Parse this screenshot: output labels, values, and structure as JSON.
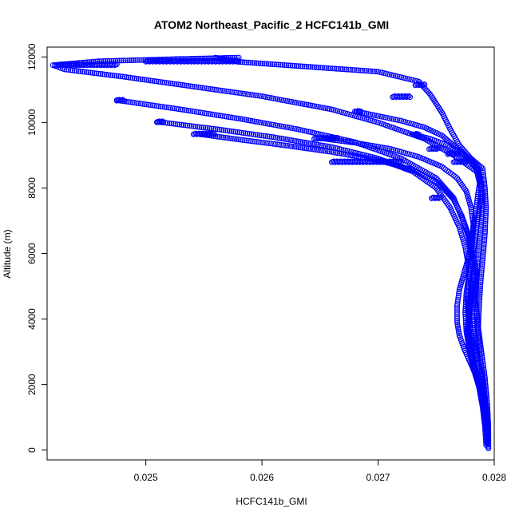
{
  "chart_data": {
    "type": "scatter",
    "title": "ATOM2 Northeast_Pacific_2 HCFC141b_GMI",
    "xlabel": "HCFC141b_GMI",
    "ylabel": "Altitude (m)",
    "xlim": [
      0.02415,
      0.028
    ],
    "ylim": [
      -300,
      12300
    ],
    "xticks": [
      0.025,
      0.026,
      0.027,
      0.028
    ],
    "xtick_labels": [
      "0.025",
      "0.026",
      "0.027",
      "0.028"
    ],
    "yticks": [
      0,
      2000,
      4000,
      6000,
      8000,
      10000,
      12000
    ],
    "ytick_labels": [
      "0",
      "2000",
      "4000",
      "6000",
      "8000",
      "10000",
      "12000"
    ],
    "grid": false,
    "legend": "none",
    "marker": "open-circle",
    "series": [
      {
        "color": "#0000ff",
        "segments": [
          [
            [
              0.02795,
              50
            ],
            [
              0.02794,
              600
            ],
            [
              0.02793,
              1200
            ],
            [
              0.02791,
              2000
            ],
            [
              0.02788,
              2800
            ],
            [
              0.02786,
              3600
            ],
            [
              0.02787,
              4400
            ],
            [
              0.02788,
              5000
            ],
            [
              0.0279,
              5800
            ],
            [
              0.02792,
              6600
            ],
            [
              0.02793,
              7400
            ],
            [
              0.02792,
              8000
            ],
            [
              0.0279,
              8600
            ],
            [
              0.0278,
              8900
            ],
            [
              0.0277,
              9300
            ],
            [
              0.02762,
              9800
            ],
            [
              0.02755,
              10300
            ],
            [
              0.02745,
              10850
            ],
            [
              0.02735,
              11250
            ],
            [
              0.027,
              11550
            ],
            [
              0.0264,
              11700
            ],
            [
              0.0258,
              11850
            ],
            [
              0.0256,
              11980
            ]
          ],
          [
            [
              0.0258,
              11980
            ],
            [
              0.0252,
              11930
            ],
            [
              0.0246,
              11870
            ],
            [
              0.0242,
              11750
            ],
            [
              0.0243,
              11620
            ],
            [
              0.0248,
              11400
            ],
            [
              0.0254,
              11100
            ],
            [
              0.026,
              10800
            ],
            [
              0.0266,
              10400
            ],
            [
              0.027,
              10000
            ],
            [
              0.0274,
              9500
            ],
            [
              0.02765,
              9000
            ],
            [
              0.02785,
              8500
            ],
            [
              0.0279,
              7800
            ],
            [
              0.02789,
              7000
            ],
            [
              0.02787,
              6200
            ],
            [
              0.02785,
              5400
            ],
            [
              0.02784,
              4600
            ],
            [
              0.02786,
              3800
            ],
            [
              0.02789,
              3000
            ],
            [
              0.02792,
              2200
            ],
            [
              0.02794,
              1400
            ],
            [
              0.02795,
              700
            ],
            [
              0.02795,
              100
            ]
          ],
          [
            [
              0.02475,
              10680
            ],
            [
              0.0253,
              10400
            ],
            [
              0.0258,
              10120
            ],
            [
              0.0263,
              9800
            ],
            [
              0.0268,
              9400
            ],
            [
              0.0272,
              8900
            ],
            [
              0.0275,
              8300
            ],
            [
              0.02765,
              7700
            ],
            [
              0.02772,
              7100
            ],
            [
              0.02778,
              6500
            ],
            [
              0.02782,
              5900
            ],
            [
              0.02785,
              5300
            ],
            [
              0.02783,
              4700
            ],
            [
              0.02781,
              4100
            ],
            [
              0.02782,
              3500
            ],
            [
              0.02785,
              2900
            ],
            [
              0.02789,
              2300
            ],
            [
              0.02792,
              1600
            ],
            [
              0.02794,
              900
            ],
            [
              0.02795,
              300
            ]
          ],
          [
            [
              0.0251,
              10020
            ],
            [
              0.0256,
              9800
            ],
            [
              0.0261,
              9550
            ],
            [
              0.0266,
              9250
            ],
            [
              0.027,
              8900
            ],
            [
              0.0273,
              8500
            ],
            [
              0.0275,
              8000
            ],
            [
              0.02762,
              7400
            ],
            [
              0.0277,
              6800
            ],
            [
              0.02775,
              6200
            ],
            [
              0.02778,
              5600
            ],
            [
              0.0278,
              5000
            ],
            [
              0.02779,
              4400
            ],
            [
              0.02778,
              3800
            ],
            [
              0.02779,
              3200
            ],
            [
              0.02783,
              2600
            ],
            [
              0.02788,
              2000
            ],
            [
              0.02791,
              1400
            ],
            [
              0.02793,
              800
            ],
            [
              0.02794,
              200
            ]
          ],
          [
            [
              0.02545,
              9650
            ],
            [
              0.0258,
              9480
            ],
            [
              0.0262,
              9300
            ],
            [
              0.0266,
              9100
            ],
            [
              0.027,
              8850
            ],
            [
              0.0273,
              8550
            ],
            [
              0.02752,
              8150
            ],
            [
              0.02765,
              7650
            ],
            [
              0.02772,
              7150
            ],
            [
              0.02777,
              6650
            ],
            [
              0.0278,
              6100
            ],
            [
              0.02782,
              5500
            ],
            [
              0.02781,
              4900
            ],
            [
              0.02779,
              4300
            ],
            [
              0.02777,
              3700
            ],
            [
              0.02778,
              3100
            ],
            [
              0.02782,
              2500
            ],
            [
              0.02787,
              1900
            ],
            [
              0.0279,
              1300
            ],
            [
              0.02792,
              700
            ],
            [
              0.02793,
              150
            ]
          ],
          [
            [
              0.0268,
              10340
            ],
            [
              0.027,
              10200
            ],
            [
              0.0272,
              10050
            ],
            [
              0.0274,
              9850
            ],
            [
              0.02755,
              9600
            ],
            [
              0.02765,
              9300
            ],
            [
              0.02775,
              9000
            ],
            [
              0.02785,
              8700
            ],
            [
              0.02788,
              8300
            ],
            [
              0.02786,
              7800
            ],
            [
              0.02784,
              7300
            ],
            [
              0.02782,
              6800
            ],
            [
              0.02781,
              6300
            ],
            [
              0.0278,
              5800
            ],
            [
              0.02778,
              5300
            ],
            [
              0.02776,
              4800
            ],
            [
              0.02775,
              4200
            ],
            [
              0.02776,
              3600
            ],
            [
              0.02779,
              3000
            ],
            [
              0.02784,
              2400
            ],
            [
              0.02788,
              1800
            ],
            [
              0.02791,
              1200
            ],
            [
              0.02793,
              600
            ]
          ],
          [
            [
              0.0273,
              9640
            ],
            [
              0.02745,
              9500
            ],
            [
              0.0276,
              9300
            ],
            [
              0.02772,
              9050
            ],
            [
              0.0278,
              8800
            ],
            [
              0.02786,
              8500
            ],
            [
              0.02789,
              8100
            ],
            [
              0.02788,
              7600
            ],
            [
              0.02786,
              7100
            ],
            [
              0.02784,
              6600
            ],
            [
              0.02782,
              6100
            ],
            [
              0.0278,
              5600
            ],
            [
              0.02778,
              5100
            ],
            [
              0.02777,
              4600
            ],
            [
              0.02778,
              4100
            ],
            [
              0.0278,
              3600
            ],
            [
              0.02783,
              3100
            ],
            [
              0.02786,
              2600
            ],
            [
              0.02789,
              2100
            ],
            [
              0.02791,
              1600
            ],
            [
              0.02793,
              1100
            ]
          ],
          [
            [
              0.0265,
              9520
            ],
            [
              0.0268,
              9380
            ],
            [
              0.0271,
              9200
            ],
            [
              0.02735,
              8950
            ],
            [
              0.02755,
              8650
            ],
            [
              0.02768,
              8300
            ],
            [
              0.02776,
              7900
            ],
            [
              0.0278,
              7400
            ],
            [
              0.02782,
              6900
            ],
            [
              0.02781,
              6400
            ],
            [
              0.02778,
              5900
            ],
            [
              0.02774,
              5400
            ],
            [
              0.0277,
              4900
            ],
            [
              0.02768,
              4400
            ],
            [
              0.02768,
              3900
            ],
            [
              0.0277,
              3500
            ],
            [
              0.02774,
              3100
            ],
            [
              0.02779,
              2700
            ],
            [
              0.02784,
              2300
            ],
            [
              0.02788,
              1900
            ]
          ]
        ],
        "clusters": [
          [
            0.0269,
            8800,
            0.0006
          ],
          [
            0.02655,
            9520,
            0.0002
          ],
          [
            0.0255,
            9650,
            0.00018
          ],
          [
            0.02512,
            10020,
            5e-05
          ],
          [
            0.02478,
            10680,
            6e-05
          ],
          [
            0.02683,
            10340,
            4e-05
          ],
          [
            0.02733,
            9640,
            4e-05
          ],
          [
            0.02748,
            9200,
            8e-05
          ],
          [
            0.0272,
            10790,
            0.00015
          ],
          [
            0.02736,
            11150,
            8e-05
          ],
          [
            0.0275,
            7700,
            8e-05
          ],
          [
            0.0277,
            8800,
            0.0001
          ],
          [
            0.0245,
            11760,
            0.0005
          ],
          [
            0.0254,
            11870,
            0.0008
          ],
          [
            0.02765,
            9050,
            0.0001
          ]
        ]
      }
    ]
  }
}
